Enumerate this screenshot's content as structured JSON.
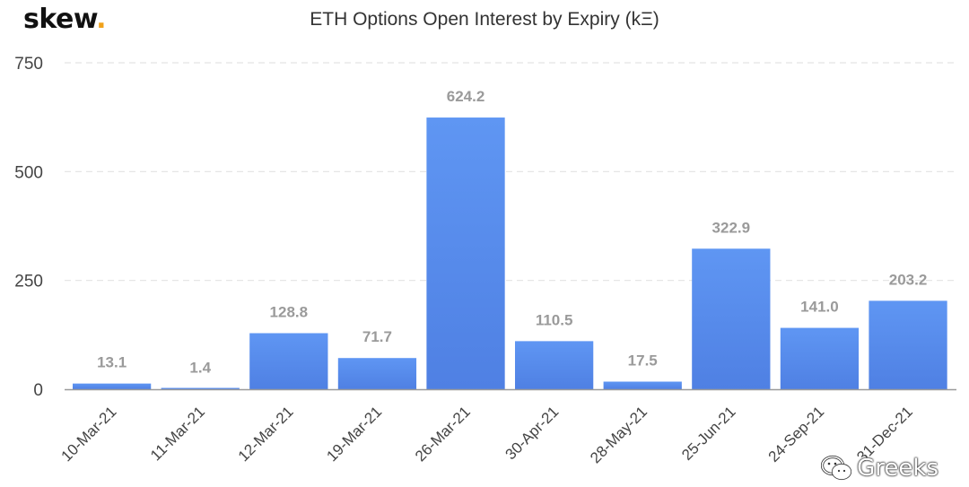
{
  "logo": {
    "text": "skew",
    "dot": "."
  },
  "watermark": {
    "text": "Greeks",
    "icon": "wechat-icon"
  },
  "chart_data": {
    "type": "bar",
    "title": "ETH Options Open Interest by Expiry (kΞ)",
    "xlabel": "",
    "ylabel": "",
    "categories": [
      "10-Mar-21",
      "11-Mar-21",
      "12-Mar-21",
      "19-Mar-21",
      "26-Mar-21",
      "30-Apr-21",
      "28-May-21",
      "25-Jun-21",
      "24-Sep-21",
      "31-Dec-21"
    ],
    "values": [
      13.1,
      1.4,
      128.8,
      71.7,
      624.2,
      110.5,
      17.5,
      322.9,
      141.0,
      203.2
    ],
    "value_labels": [
      "13.1",
      "1.4",
      "128.8",
      "71.7",
      "624.2",
      "110.5",
      "17.5",
      "322.9",
      "141.0",
      "203.2"
    ],
    "ylim": [
      0,
      750
    ],
    "yticks": [
      0,
      250,
      500,
      750
    ],
    "grid": true,
    "bar_color_top": "#5f96f3",
    "bar_color_bottom": "#4f80e3",
    "grid_color": "#e3e3e3"
  }
}
